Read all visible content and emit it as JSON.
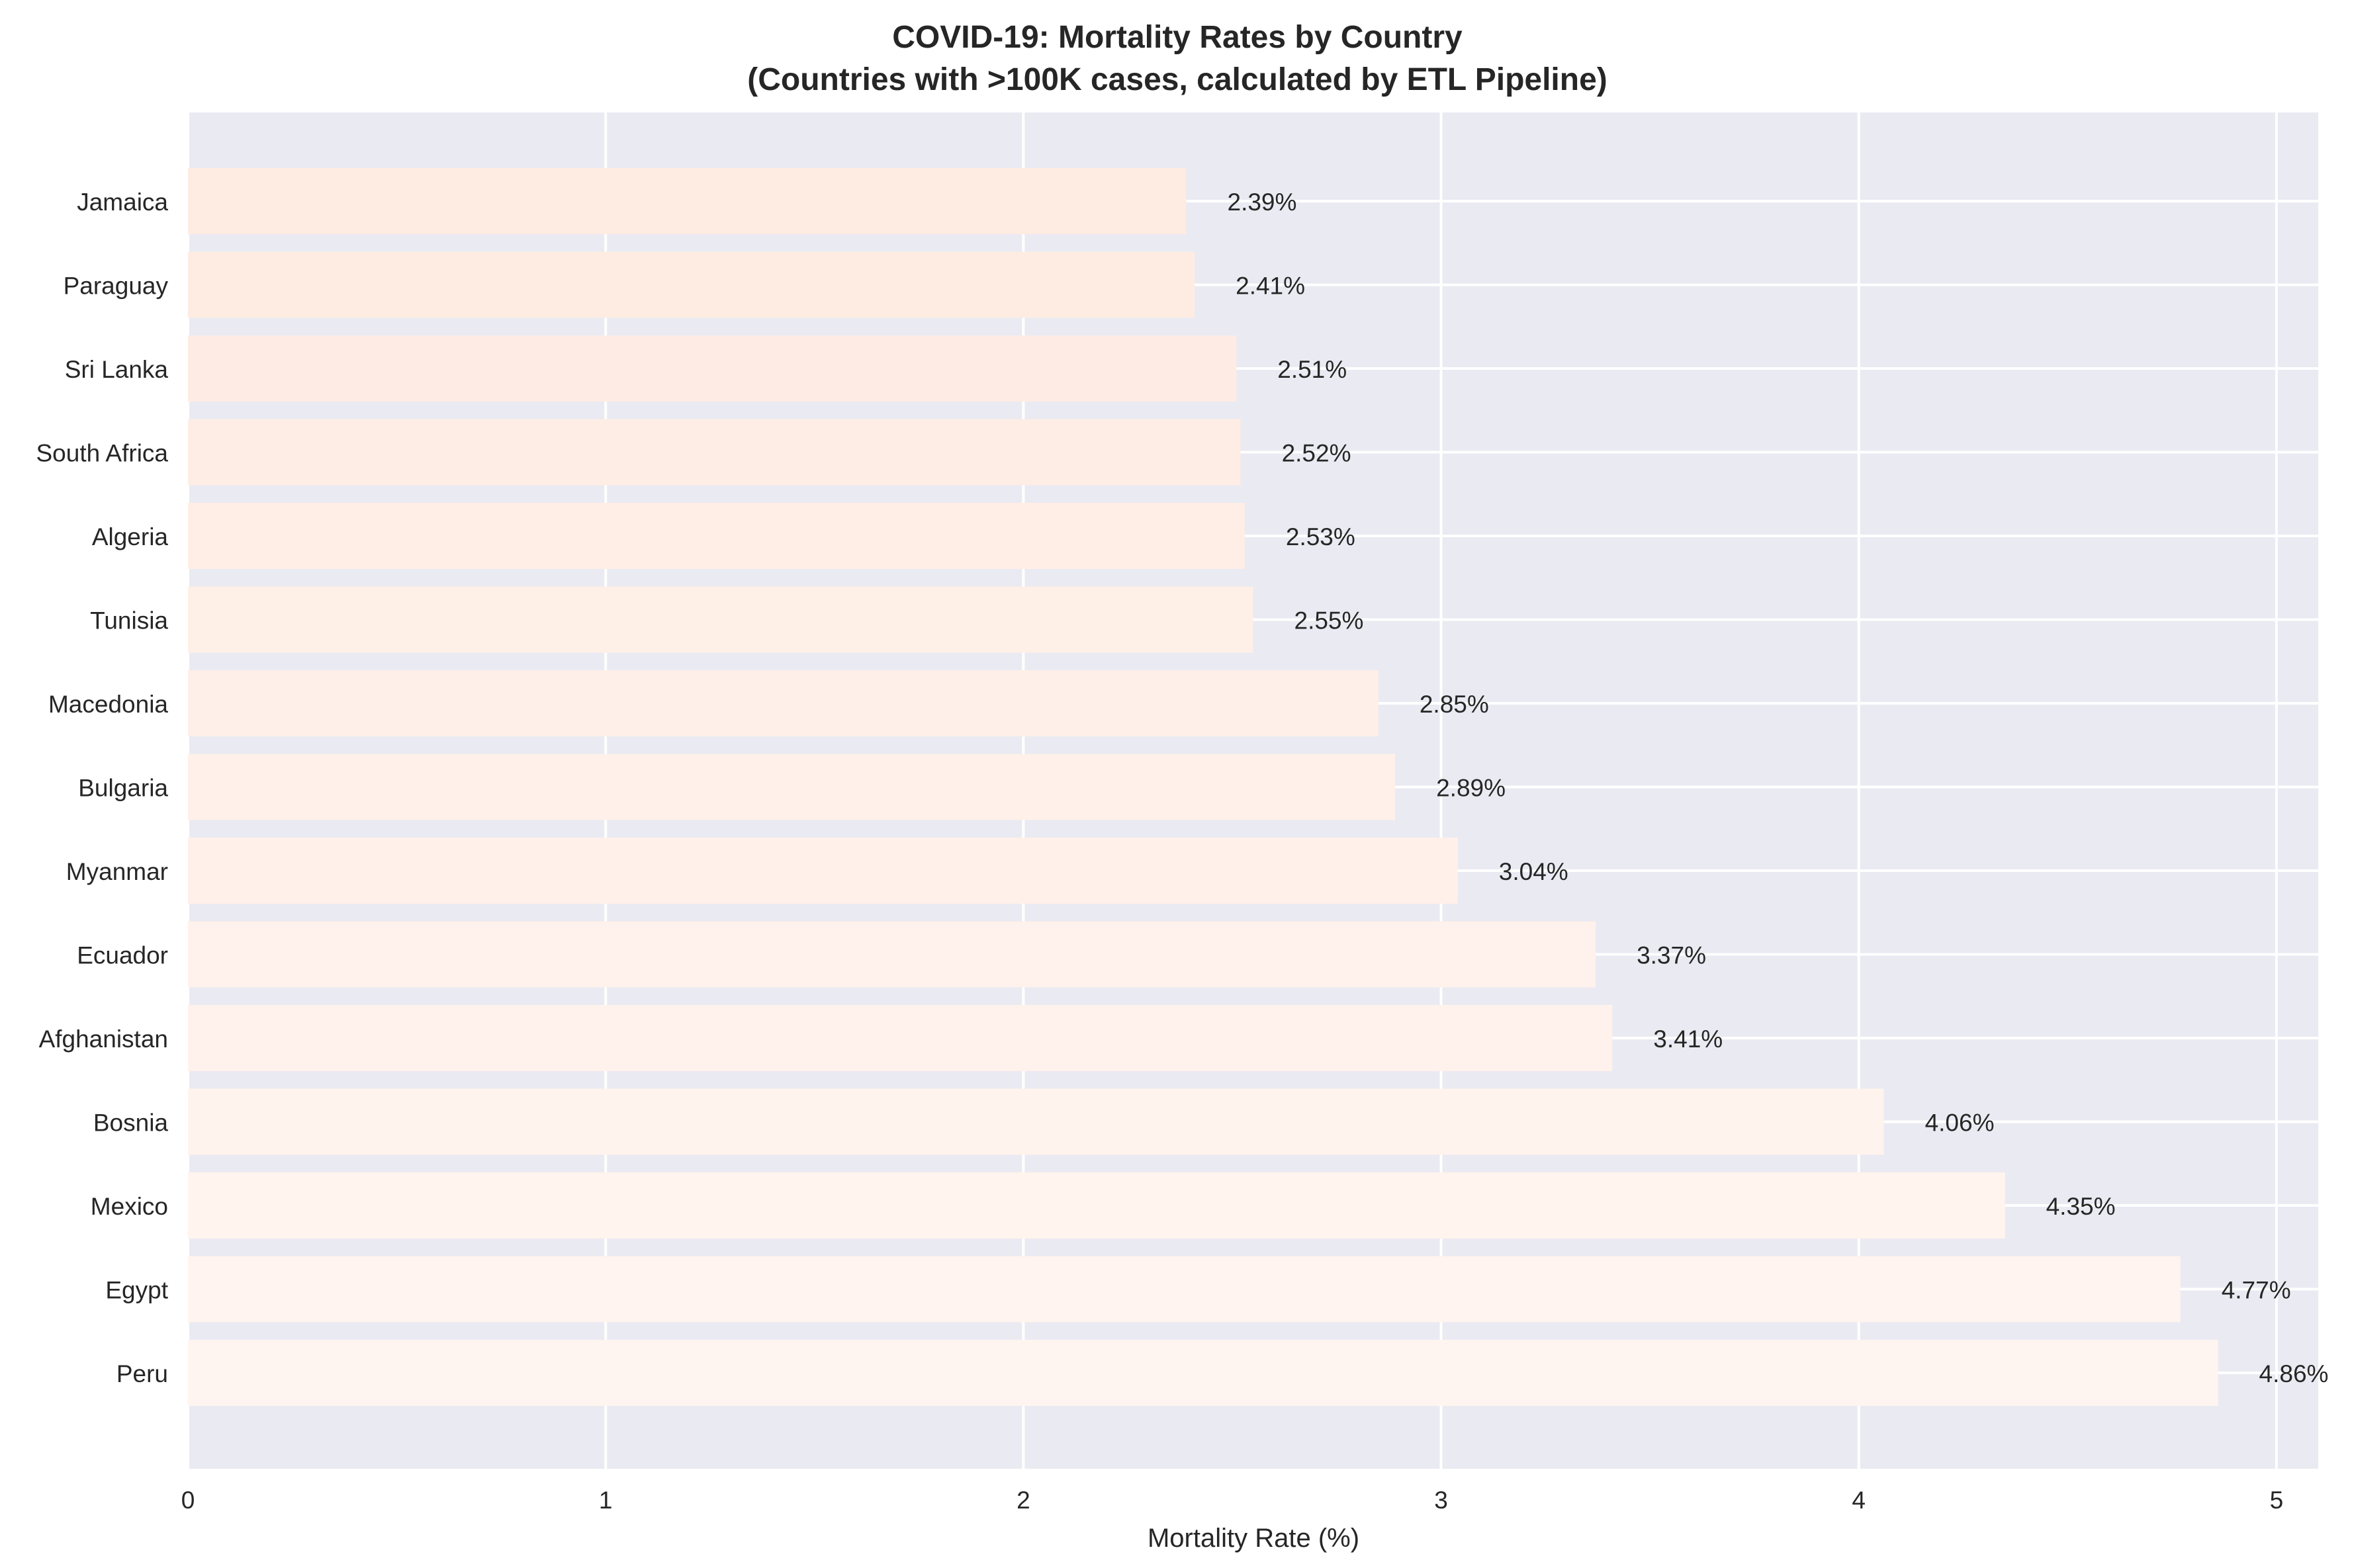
{
  "chart_data": {
    "type": "bar",
    "orientation": "horizontal",
    "title": "COVID-19: Mortality Rates by Country",
    "subtitle": "(Countries with >100K cases, calculated by ETL Pipeline)",
    "xlabel": "Mortality Rate (%)",
    "ylabel": "",
    "xlim": [
      0,
      5.1
    ],
    "xticks": [
      "0",
      "1",
      "2",
      "3",
      "4",
      "5"
    ],
    "grid": true,
    "legend": "none",
    "categories": [
      "Jamaica",
      "Paraguay",
      "Sri Lanka",
      "South Africa",
      "Algeria",
      "Tunisia",
      "Macedonia",
      "Bulgaria",
      "Myanmar",
      "Ecuador",
      "Afghanistan",
      "Bosnia",
      "Mexico",
      "Egypt",
      "Peru"
    ],
    "values": [
      2.39,
      2.41,
      2.51,
      2.52,
      2.53,
      2.55,
      2.85,
      2.89,
      3.04,
      3.37,
      3.41,
      4.06,
      4.35,
      4.77,
      4.86
    ],
    "value_labels": [
      "2.39%",
      "2.41%",
      "2.51%",
      "2.52%",
      "2.53%",
      "2.55%",
      "2.85%",
      "2.89%",
      "3.04%",
      "3.37%",
      "3.41%",
      "4.06%",
      "4.35%",
      "4.77%",
      "4.86%"
    ],
    "colors": {
      "plot_background": "#eaeaf2",
      "grid": "#ffffff",
      "bar_start": "#feebe2",
      "bar_end": "#fff5f0",
      "text": "#262626"
    }
  }
}
